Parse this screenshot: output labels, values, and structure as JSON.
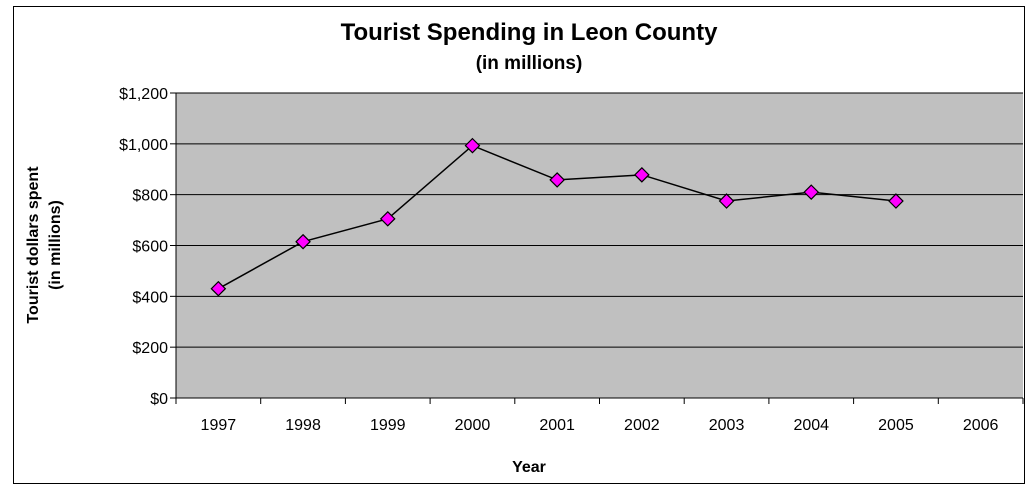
{
  "chart_data": {
    "type": "line",
    "title": "Tourist Spending in Leon County",
    "subtitle": "(in millions)",
    "xlabel": "Year",
    "ylabel": "Tourist dollars spent",
    "ylabel_sub": "(in millions)",
    "categories": [
      "1997",
      "1998",
      "1999",
      "2000",
      "2001",
      "2002",
      "2003",
      "2004",
      "2005",
      "2006"
    ],
    "series": [
      {
        "values": [
          430,
          615,
          705,
          993,
          858,
          878,
          775,
          810,
          775,
          null
        ]
      }
    ],
    "yticks": [
      0,
      200,
      400,
      600,
      800,
      1000,
      1200
    ],
    "ytick_labels": [
      "$0",
      "$200",
      "$400",
      "$600",
      "$800",
      "$1,000",
      "$1,200"
    ],
    "ylim": [
      0,
      1200
    ],
    "grid": true,
    "legend": "none",
    "colors": {
      "plot_background": "#c0c0c0",
      "line": "#000000",
      "marker_fill": "#ff00ff",
      "marker_stroke": "#000000",
      "grid": "#000000"
    }
  }
}
